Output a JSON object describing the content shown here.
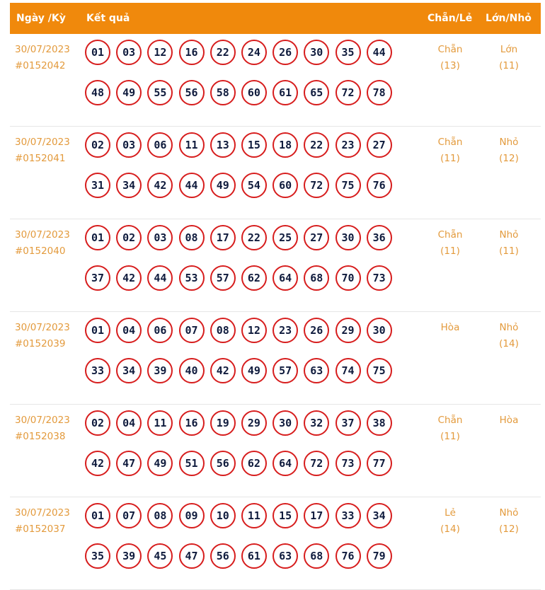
{
  "header": {
    "date_col": "Ngày /Kỳ",
    "result_col": "Kết quả",
    "chanle_col": "Chẵn/Lẻ",
    "lonnho_col": "Lớn/Nhỏ"
  },
  "colors": {
    "header_bg": "#f0890c",
    "accent_text": "#e39a3c",
    "ball_border": "#d71d1d",
    "ball_text": "#0f1b3d"
  },
  "draws": [
    {
      "date": "30/07/2023",
      "id": "#0152042",
      "numbers": [
        "01",
        "03",
        "12",
        "16",
        "22",
        "24",
        "26",
        "30",
        "35",
        "44",
        "48",
        "49",
        "55",
        "56",
        "58",
        "60",
        "61",
        "65",
        "72",
        "78"
      ],
      "chanle_label": "Chẵn",
      "chanle_count": "(13)",
      "lonnho_label": "Lớn",
      "lonnho_count": "(11)"
    },
    {
      "date": "30/07/2023",
      "id": "#0152041",
      "numbers": [
        "02",
        "03",
        "06",
        "11",
        "13",
        "15",
        "18",
        "22",
        "23",
        "27",
        "31",
        "34",
        "42",
        "44",
        "49",
        "54",
        "60",
        "72",
        "75",
        "76"
      ],
      "chanle_label": "Chẵn",
      "chanle_count": "(11)",
      "lonnho_label": "Nhỏ",
      "lonnho_count": "(12)"
    },
    {
      "date": "30/07/2023",
      "id": "#0152040",
      "numbers": [
        "01",
        "02",
        "03",
        "08",
        "17",
        "22",
        "25",
        "27",
        "30",
        "36",
        "37",
        "42",
        "44",
        "53",
        "57",
        "62",
        "64",
        "68",
        "70",
        "73"
      ],
      "chanle_label": "Chẵn",
      "chanle_count": "(11)",
      "lonnho_label": "Nhỏ",
      "lonnho_count": "(11)"
    },
    {
      "date": "30/07/2023",
      "id": "#0152039",
      "numbers": [
        "01",
        "04",
        "06",
        "07",
        "08",
        "12",
        "23",
        "26",
        "29",
        "30",
        "33",
        "34",
        "39",
        "40",
        "42",
        "49",
        "57",
        "63",
        "74",
        "75"
      ],
      "chanle_label": "Hòa",
      "chanle_count": "",
      "lonnho_label": "Nhỏ",
      "lonnho_count": "(14)"
    },
    {
      "date": "30/07/2023",
      "id": "#0152038",
      "numbers": [
        "02",
        "04",
        "11",
        "16",
        "19",
        "29",
        "30",
        "32",
        "37",
        "38",
        "42",
        "47",
        "49",
        "51",
        "56",
        "62",
        "64",
        "72",
        "73",
        "77"
      ],
      "chanle_label": "Chẵn",
      "chanle_count": "(11)",
      "lonnho_label": "Hòa",
      "lonnho_count": ""
    },
    {
      "date": "30/07/2023",
      "id": "#0152037",
      "numbers": [
        "01",
        "07",
        "08",
        "09",
        "10",
        "11",
        "15",
        "17",
        "33",
        "34",
        "35",
        "39",
        "45",
        "47",
        "56",
        "61",
        "63",
        "68",
        "76",
        "79"
      ],
      "chanle_label": "Lẻ",
      "chanle_count": "(14)",
      "lonnho_label": "Nhỏ",
      "lonnho_count": "(12)"
    }
  ]
}
